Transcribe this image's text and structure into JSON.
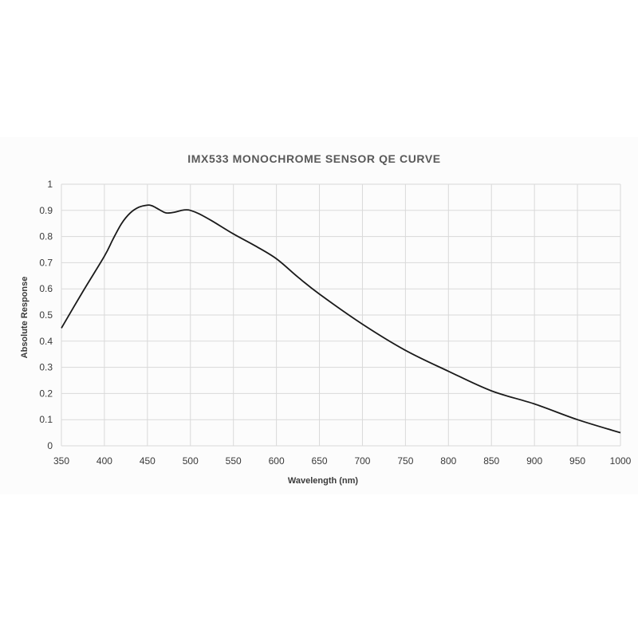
{
  "chart_data": {
    "type": "line",
    "title": "IMX533 MONOCHROME SENSOR QE CURVE",
    "xlabel": "Wavelength (nm)",
    "ylabel": "Absolute Response",
    "xlim": [
      350,
      1000
    ],
    "ylim": [
      0,
      1
    ],
    "x_ticks": [
      350,
      400,
      450,
      500,
      550,
      600,
      650,
      700,
      750,
      800,
      850,
      900,
      950,
      1000
    ],
    "y_ticks": [
      0,
      0.1,
      0.2,
      0.3,
      0.4,
      0.5,
      0.6,
      0.7,
      0.8,
      0.9,
      1
    ],
    "y_tick_labels": [
      "0",
      "0.1",
      "0.2",
      "0.3",
      "0.4",
      "0.5",
      "0.6",
      "0.7",
      "0.8",
      "0.9",
      "1"
    ],
    "grid": true,
    "line_color": "#1a1a1a",
    "series": [
      {
        "x": [
          350,
          375,
          400,
          410,
          420,
          430,
          440,
          450,
          455,
          460,
          470,
          475,
          480,
          490,
          495,
          500,
          510,
          525,
          550,
          575,
          600,
          625,
          650,
          700,
          750,
          800,
          850,
          900,
          950,
          1000
        ],
        "values": [
          0.45,
          0.59,
          0.725,
          0.79,
          0.85,
          0.89,
          0.912,
          0.92,
          0.918,
          0.91,
          0.892,
          0.89,
          0.892,
          0.9,
          0.902,
          0.9,
          0.887,
          0.86,
          0.81,
          0.765,
          0.715,
          0.645,
          0.58,
          0.465,
          0.365,
          0.285,
          0.21,
          0.16,
          0.1,
          0.05
        ]
      }
    ]
  }
}
